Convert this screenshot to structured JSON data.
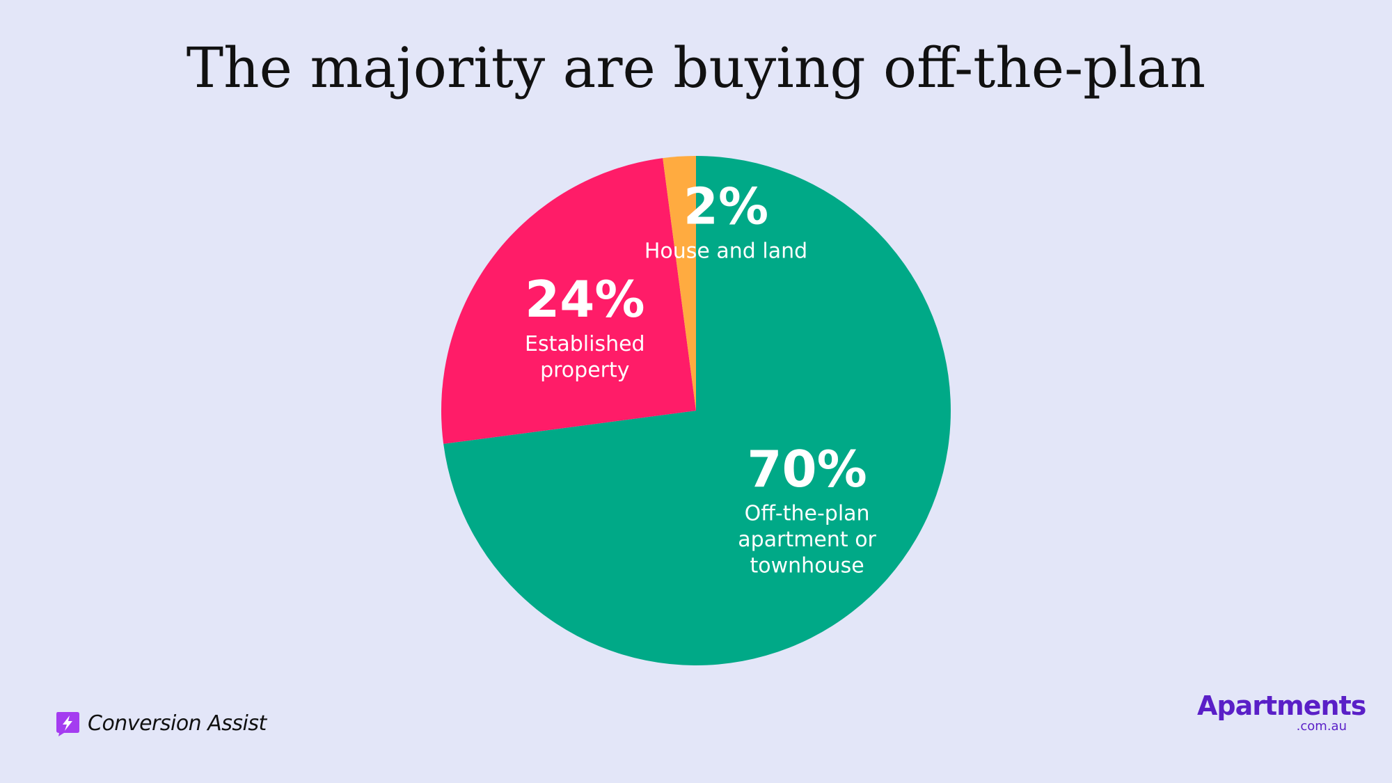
{
  "chart_data": {
    "type": "pie",
    "title": "The majority are buying off-the-plan",
    "slices": [
      {
        "label": "Off-the-plan apartment or townhouse",
        "label_lines": [
          "Off-the-plan",
          "apartment or",
          "townhouse"
        ],
        "value": 70,
        "value_label": "70%",
        "color": "#00a987"
      },
      {
        "label": "Established property",
        "label_lines": [
          "Established",
          "property"
        ],
        "value": 24,
        "value_label": "24%",
        "color": "#ff1c68"
      },
      {
        "label": "House and land",
        "label_lines": [
          "House and land"
        ],
        "value": 2,
        "value_label": "2%",
        "color": "#ffab40"
      }
    ]
  },
  "branding": {
    "left_logo_text": "Conversion Assist",
    "left_logo_color": "#a43cf0",
    "right_logo_text": "Apartments",
    "right_logo_subtext": ".com.au",
    "right_logo_color": "#5a1fc7"
  },
  "colors": {
    "background": "#e3e6f8"
  }
}
